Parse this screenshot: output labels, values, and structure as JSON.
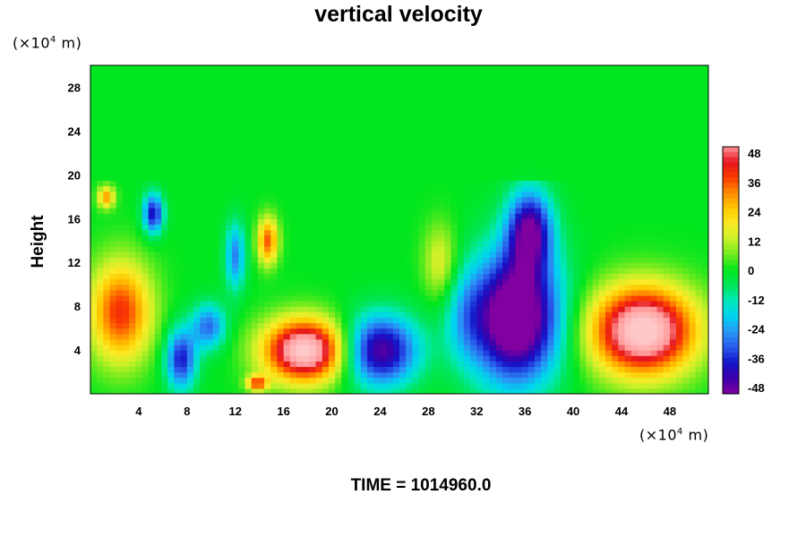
{
  "chart_data": {
    "type": "heatmap",
    "title": "vertical velocity",
    "ylabel": "Height",
    "x_unit_label": {
      "prefix": "(×10",
      "exp": "4",
      "suffix": " m)"
    },
    "y_unit_label": {
      "prefix": "(×10",
      "exp": "4",
      "suffix": " m)"
    },
    "xlim": [
      0,
      51.2
    ],
    "ylim": [
      0,
      30
    ],
    "x_ticks": [
      4,
      8,
      12,
      16,
      20,
      24,
      28,
      32,
      36,
      40,
      44,
      48
    ],
    "y_ticks": [
      4,
      8,
      12,
      16,
      20,
      24,
      28
    ],
    "colorbar": {
      "ticks": [
        48,
        36,
        24,
        12,
        0,
        -12,
        -24,
        -36,
        -48
      ],
      "vmin": -48,
      "vmax": 48
    },
    "features": [
      {
        "x": 2.5,
        "y": 7.5,
        "sx": 1.8,
        "sy": 3.2,
        "amp": 38
      },
      {
        "x": 17.8,
        "y": 4.0,
        "sx": 2.4,
        "sy": 2.0,
        "amp": 62
      },
      {
        "x": 45.8,
        "y": 5.8,
        "sx": 3.0,
        "sy": 2.8,
        "amp": 64
      },
      {
        "x": 14.7,
        "y": 14.0,
        "sx": 0.6,
        "sy": 1.5,
        "amp": 34
      },
      {
        "x": 1.3,
        "y": 18.0,
        "sx": 0.5,
        "sy": 0.7,
        "amp": 28
      },
      {
        "x": 13.8,
        "y": 1.0,
        "sx": 0.6,
        "sy": 0.5,
        "amp": 34
      },
      {
        "x": 29.0,
        "y": 12.0,
        "sx": 1.0,
        "sy": 2.5,
        "amp": 16
      },
      {
        "x": 5.2,
        "y": 16.5,
        "sx": 0.6,
        "sy": 1.3,
        "amp": -38
      },
      {
        "x": 24.0,
        "y": 4.0,
        "sx": 2.2,
        "sy": 2.3,
        "amp": -46
      },
      {
        "x": 35.2,
        "y": 7.0,
        "sx": 2.6,
        "sy": 4.2,
        "amp": -62
      },
      {
        "x": 36.4,
        "y": 15.0,
        "sx": 1.3,
        "sy": 2.6,
        "amp": -44
      },
      {
        "x": 7.5,
        "y": 3.2,
        "sx": 0.9,
        "sy": 2.0,
        "amp": -36
      },
      {
        "x": 9.8,
        "y": 6.2,
        "sx": 1.0,
        "sy": 1.5,
        "amp": -28
      },
      {
        "x": 12.0,
        "y": 12.6,
        "sx": 0.6,
        "sy": 2.2,
        "amp": -26
      },
      {
        "x": 31.0,
        "y": 7.0,
        "sx": 1.2,
        "sy": 3.0,
        "amp": -12
      }
    ]
  },
  "footer": {
    "time_label": "TIME = 1014960.0"
  }
}
